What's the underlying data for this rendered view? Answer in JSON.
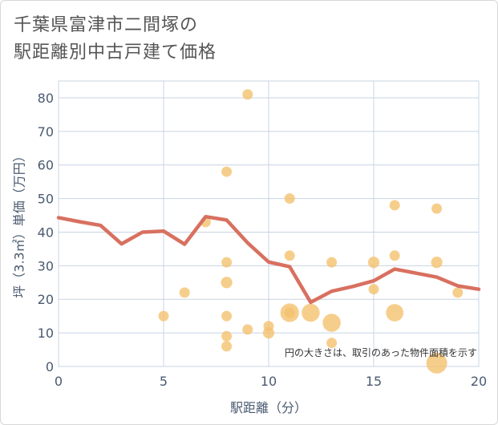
{
  "title_lines": [
    "千葉県富津市二間塚の",
    "駅距離別中古戸建て価格"
  ],
  "chart_data": {
    "type": "scatter",
    "xlabel": "駅距離（分）",
    "ylabel": "坪（3.3㎡）単価（万円）",
    "xlim": [
      0,
      20
    ],
    "ylim": [
      0,
      85
    ],
    "x_ticks": [
      0,
      5,
      10,
      15,
      20
    ],
    "y_ticks": [
      0,
      10,
      20,
      30,
      40,
      50,
      60,
      70,
      80
    ],
    "grid": true,
    "note": "円の大きさは、取引のあった物件面積を示す",
    "colors": {
      "bubble": "#f3c06b",
      "line": "#d87060",
      "grid": "#c8d4e4",
      "text": "#4a5a70"
    },
    "bubbles": [
      {
        "x": 5,
        "y": 15,
        "size": 1
      },
      {
        "x": 6,
        "y": 22,
        "size": 1
      },
      {
        "x": 7,
        "y": 43,
        "size": 1
      },
      {
        "x": 8,
        "y": 58,
        "size": 1
      },
      {
        "x": 8,
        "y": 31,
        "size": 1
      },
      {
        "x": 8,
        "y": 25,
        "size": 1.2
      },
      {
        "x": 8,
        "y": 15,
        "size": 1
      },
      {
        "x": 8,
        "y": 9,
        "size": 1
      },
      {
        "x": 8,
        "y": 6,
        "size": 1
      },
      {
        "x": 9,
        "y": 81,
        "size": 1
      },
      {
        "x": 9,
        "y": 11,
        "size": 1
      },
      {
        "x": 10,
        "y": 12,
        "size": 1
      },
      {
        "x": 10,
        "y": 10,
        "size": 1.2
      },
      {
        "x": 11,
        "y": 50,
        "size": 1
      },
      {
        "x": 11,
        "y": 33,
        "size": 1
      },
      {
        "x": 11,
        "y": 16,
        "size": 3.2
      },
      {
        "x": 11,
        "y": 16,
        "size": 1
      },
      {
        "x": 12,
        "y": 16,
        "size": 3.0
      },
      {
        "x": 13,
        "y": 13,
        "size": 3.0
      },
      {
        "x": 13,
        "y": 31,
        "size": 1
      },
      {
        "x": 13,
        "y": 7,
        "size": 1
      },
      {
        "x": 15,
        "y": 31,
        "size": 1.2
      },
      {
        "x": 15,
        "y": 23,
        "size": 1
      },
      {
        "x": 16,
        "y": 48,
        "size": 1
      },
      {
        "x": 16,
        "y": 33,
        "size": 1
      },
      {
        "x": 16,
        "y": 16,
        "size": 2.8
      },
      {
        "x": 18,
        "y": 47,
        "size": 1
      },
      {
        "x": 18,
        "y": 31,
        "size": 1.2
      },
      {
        "x": 18,
        "y": 1,
        "size": 4.0
      },
      {
        "x": 19,
        "y": 22,
        "size": 1
      }
    ],
    "series": [
      {
        "x": [
          0,
          1,
          2,
          3,
          4,
          5,
          6,
          7,
          8,
          9,
          10,
          11,
          12,
          13,
          14,
          15,
          16,
          17,
          18,
          19,
          20
        ],
        "values": [
          44.3,
          43.1,
          42.0,
          36.5,
          40.0,
          40.3,
          36.4,
          44.6,
          43.6,
          36.8,
          31.1,
          29.7,
          19.1,
          22.4,
          23.8,
          25.5,
          29.0,
          27.8,
          26.6,
          24.0,
          23.0
        ]
      }
    ]
  }
}
